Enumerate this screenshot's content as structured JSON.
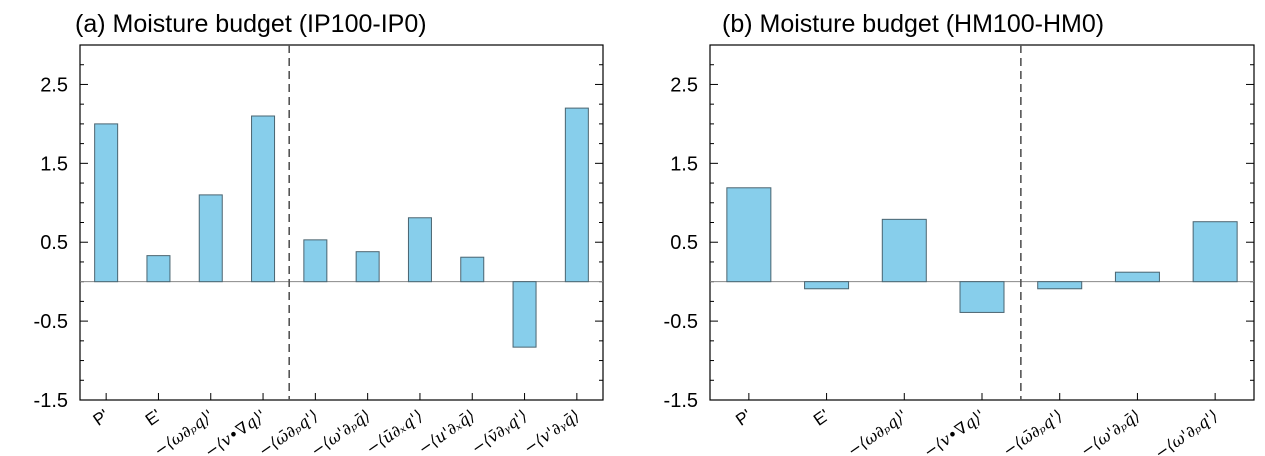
{
  "style": {
    "bar_color": "#87ceeb",
    "bar_edge": "#4a6470",
    "zero_line": "#888888",
    "divider": "#555555"
  },
  "chart_data": [
    {
      "type": "bar",
      "title": "(a) Moisture budget (IP100-IP0)",
      "xlabel": "",
      "ylabel": "",
      "ylim": [
        -1.5,
        3.0
      ],
      "yticks": [
        "2.5",
        "1.5",
        "0.5",
        "-0.5",
        "-1.5"
      ],
      "ytick_values": [
        2.5,
        1.5,
        0.5,
        -0.5,
        -1.5
      ],
      "categories": [
        "P'",
        "E'",
        "−⟨ω∂ₚq⟩'",
        "−⟨v•∇q⟩'",
        "−⟨ω̄∂ₚq'⟩",
        "−⟨ω'∂ₚq̄⟩",
        "−⟨ū∂ₓq'⟩",
        "−⟨u'∂ₓq̄⟩",
        "−⟨v̄∂ᵧq'⟩",
        "−⟨v'∂ᵧq̄⟩"
      ],
      "values": [
        2.0,
        0.33,
        1.1,
        2.1,
        0.53,
        0.38,
        0.81,
        0.31,
        -0.83,
        2.2
      ],
      "divider_after_index": 3,
      "grid": false
    },
    {
      "type": "bar",
      "title": "(b) Moisture budget (HM100-HM0)",
      "xlabel": "",
      "ylabel": "",
      "ylim": [
        -1.5,
        3.0
      ],
      "yticks": [
        "2.5",
        "1.5",
        "0.5",
        "-0.5",
        "-1.5"
      ],
      "ytick_values": [
        2.5,
        1.5,
        0.5,
        -0.5,
        -1.5
      ],
      "categories": [
        "P'",
        "E'",
        "−⟨ω∂ₚq⟩'",
        "−⟨v•∇q⟩'",
        "−⟨ω̄∂ₚq'⟩",
        "−⟨ω'∂ₚq̄⟩",
        "−⟨ω'∂ₚq'⟩"
      ],
      "values": [
        1.19,
        -0.09,
        0.79,
        -0.39,
        -0.09,
        0.12,
        0.76
      ],
      "divider_after_index": 3,
      "grid": false
    }
  ]
}
